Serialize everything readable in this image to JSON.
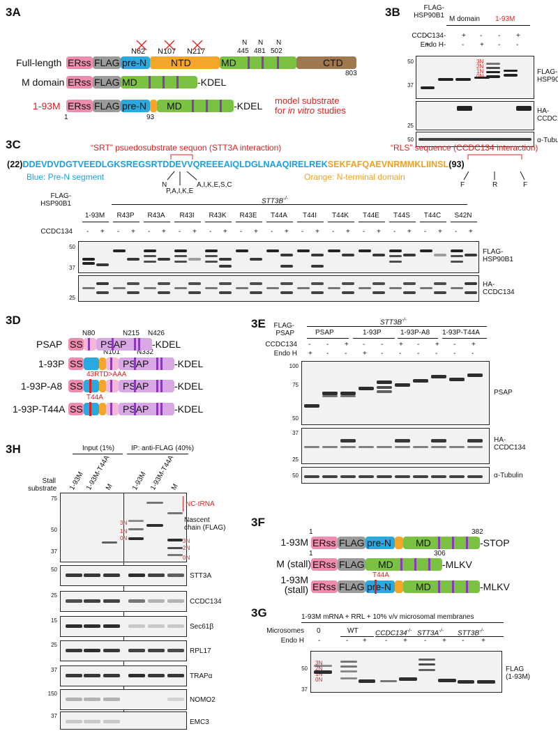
{
  "panels": {
    "a": "3A",
    "b": "3B",
    "c": "3C",
    "d": "3D",
    "e": "3E",
    "f": "3F",
    "g": "3G",
    "h": "3H"
  },
  "panelA": {
    "rows": [
      {
        "label": "Full-length",
        "segments": [
          "ERss",
          "FLAG",
          "pre-N",
          "NTD",
          "MD",
          "CTD"
        ],
        "end": "803"
      },
      {
        "label": "M domain",
        "segments": [
          "ERss",
          "FLAG",
          "MD"
        ],
        "suffix": "-KDEL"
      },
      {
        "label": "1-93M",
        "segments": [
          "ERss",
          "FLAG",
          "pre-N",
          "MD"
        ],
        "suffix": "-KDEL",
        "start": "1",
        "mid": "93"
      }
    ],
    "sites_crossed": [
      "N62",
      "N107",
      "N217"
    ],
    "sites": [
      "N",
      "N",
      "N"
    ],
    "site_nums": [
      "445",
      "481",
      "502"
    ],
    "note_line1": "model substrate",
    "note_line2_pre": "for ",
    "note_line2_em": "in vitro",
    "note_line2_post": " studies"
  },
  "panelB": {
    "header_construct": "FLAG-\nHSP90B1",
    "group1": "M domain",
    "group2": "1-93M",
    "row1_label": "CCDC134",
    "row2_label": "Endo H",
    "row1": [
      "-",
      "-",
      "+",
      "-",
      "-",
      "+"
    ],
    "row2": [
      "+",
      "-",
      "-",
      "+",
      "-",
      "-"
    ],
    "blot_labels": [
      "FLAG-\nHSP90B1",
      "HA-\nCCDC134",
      "α-Tubulin"
    ],
    "mw1": [
      "50",
      "37"
    ],
    "mw2": [
      "25"
    ],
    "mw3": [
      "50"
    ],
    "glyco": [
      "3N",
      "2N",
      "1N",
      "0N"
    ]
  },
  "panelC": {
    "srt_title": "“SRT” psuedosubstrate sequon (STT3A interaction)",
    "rls_title": "“RLS” sequence (CCDC134 interaction)",
    "seq_start": "(22)",
    "seq_blue": "DDEVDVDGTVEEDLGKSREGSRTDDEVVQREEEAIQLDGLNAAQIRELREK",
    "seq_orange": "SEKFAFQAEVNRMMKLIINSL",
    "seq_end": "(93)",
    "blue_label": "Blue: Pre-N segment",
    "orange_label": "Orange: N-terminal domain",
    "sub1_top": "N",
    "sub1": "P,A,I,K,E",
    "sub2": "A,I,K,E,S,C",
    "sub3": "F",
    "sub4": "R",
    "sub5": "F",
    "header": "FLAG-\nHSP90B1",
    "genotype": "STT3B",
    "genotype_sup": "-/-",
    "lanes": [
      "1-93M",
      "R43P",
      "R43A",
      "R43I",
      "R43K",
      "R43E",
      "T44A",
      "T44I",
      "T44K",
      "T44E",
      "T44S",
      "T44C",
      "S42N"
    ],
    "ccdc_label": "CCDC134",
    "ccdc_signs": [
      "-",
      "+"
    ],
    "blot_labels": [
      "FLAG-\nHSP90B1",
      "HA-\nCCDC134"
    ],
    "mw1": [
      "50",
      "37"
    ],
    "mw2": [
      "25"
    ]
  },
  "panelD": {
    "rows": [
      {
        "label": "PSAP",
        "suffix": "-KDEL"
      },
      {
        "label": "1-93P",
        "suffix": "-KDEL"
      },
      {
        "label": "1-93P-A8",
        "suffix": "-KDEL",
        "mut": "43RTD>AAA"
      },
      {
        "label": "1-93P-T44A",
        "suffix": "-KDEL",
        "mut": "T44A"
      }
    ],
    "seg_ss": "SS",
    "seg_psap": "PSAP",
    "sites_top": [
      "N80",
      "N215",
      "N426"
    ],
    "sites_bot": [
      "N101",
      "N332"
    ]
  },
  "panelE": {
    "genotype": "STT3B",
    "genotype_sup": "-/-",
    "header": "FLAG-\nPSAP",
    "groups": [
      "PSAP",
      "1-93P",
      "1-93P-A8",
      "1-93P-T44A"
    ],
    "row1_label": "CCDC134",
    "row2_label": "Endo H",
    "row1": [
      "-",
      "-",
      "+",
      "-",
      "-",
      "+",
      "-",
      "+",
      "-",
      "+"
    ],
    "row2": [
      "+",
      "-",
      "-",
      "+",
      "-",
      "-",
      "-",
      "-",
      "-",
      "-"
    ],
    "blot_labels": [
      "PSAP",
      "HA-\nCCDC134",
      "α-Tubulin"
    ],
    "mw1": [
      "100",
      "75",
      "50"
    ],
    "mw2": [
      "37",
      "25"
    ],
    "mw3": [
      "50"
    ]
  },
  "panelF": {
    "rows": [
      {
        "label": "1-93M",
        "suffix": "-STOP",
        "start": "1",
        "end": "382"
      },
      {
        "label": "M (stall)",
        "suffix": "-MLKV",
        "start": "1",
        "end": "306"
      },
      {
        "label": "1-93M\n(stall)",
        "suffix": "-MLKV",
        "mut": "T44A"
      }
    ],
    "segs": [
      "ERss",
      "FLAG",
      "pre-N",
      "MD"
    ]
  },
  "panelG": {
    "title": "1-93M mRNA + RRL + 10% v/v microsomal membranes",
    "row1_label": "Microsomes",
    "row2_label": "Endo H",
    "groups": [
      "0",
      "WT",
      "CCDC134",
      "STT3A",
      "STT3B"
    ],
    "sup": "-/-",
    "row2": [
      "-",
      "-",
      "+",
      "-",
      "+",
      "-",
      "+",
      "-",
      "+"
    ],
    "blot_label": "FLAG\n(1-93M)",
    "mw": [
      "50",
      "37"
    ],
    "glyco": [
      "3N",
      "2N",
      "1N",
      "0N"
    ]
  },
  "panelH": {
    "input": "Input (1%)",
    "ip": "IP: anti-FLAG (40%)",
    "stall": "Stall\nsubstrate",
    "lanes": [
      "1-93M",
      "1-93M-T44A",
      "M",
      "1-93M",
      "1-93M-T44A",
      "M"
    ],
    "nc_trna": "NC-tRNA",
    "nascent": "Nascent\nchain (FLAG)",
    "glyco_left": [
      "3N",
      "1N",
      "0N"
    ],
    "glyco_right": [
      "3N",
      "2N",
      "0N"
    ],
    "blots": [
      "STT3A",
      "CCDC134",
      "Sec61β",
      "RPL17",
      "TRAPα",
      "NOMO2",
      "EMC3"
    ],
    "mw_main": [
      "75",
      "50",
      "37"
    ],
    "mw_small": [
      "50",
      "25",
      "15",
      "25",
      "37",
      "150",
      "37"
    ]
  }
}
